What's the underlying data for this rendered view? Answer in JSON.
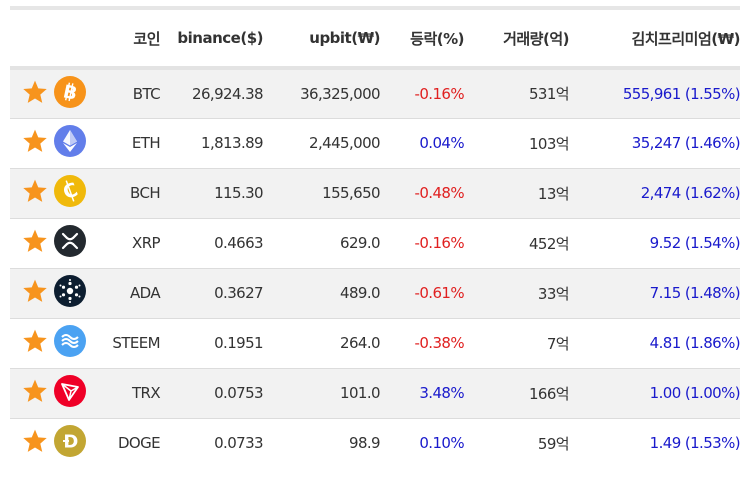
{
  "headers": {
    "coin": "코인",
    "binance": "binance($)",
    "upbit": "upbit(₩)",
    "change": "등락(%)",
    "volume": "거래량(억)",
    "premium": "김치프리미엄(₩)"
  },
  "colors": {
    "star": "#f7941d",
    "negative": "#e02020",
    "positive": "#1a1acc",
    "row_stripe": "#f2f2f2"
  },
  "rows": [
    {
      "symbol": "BTC",
      "binance": "26,924.38",
      "upbit": "36,325,000",
      "change": "-0.16%",
      "change_dir": "neg",
      "volume": "531억",
      "premium": "555,961 (1.55%)",
      "icon": "bitcoin-icon"
    },
    {
      "symbol": "ETH",
      "binance": "1,813.89",
      "upbit": "2,445,000",
      "change": "0.04%",
      "change_dir": "pos",
      "volume": "103억",
      "premium": "35,247 (1.46%)",
      "icon": "ethereum-icon"
    },
    {
      "symbol": "BCH",
      "binance": "115.30",
      "upbit": "155,650",
      "change": "-0.48%",
      "change_dir": "neg",
      "volume": "13억",
      "premium": "2,474 (1.62%)",
      "icon": "bitcoin-cash-icon"
    },
    {
      "symbol": "XRP",
      "binance": "0.4663",
      "upbit": "629.0",
      "change": "-0.16%",
      "change_dir": "neg",
      "volume": "452억",
      "premium": "9.52 (1.54%)",
      "icon": "xrp-icon"
    },
    {
      "symbol": "ADA",
      "binance": "0.3627",
      "upbit": "489.0",
      "change": "-0.61%",
      "change_dir": "neg",
      "volume": "33억",
      "premium": "7.15 (1.48%)",
      "icon": "cardano-icon"
    },
    {
      "symbol": "STEEM",
      "binance": "0.1951",
      "upbit": "264.0",
      "change": "-0.38%",
      "change_dir": "neg",
      "volume": "7억",
      "premium": "4.81 (1.86%)",
      "icon": "steem-icon"
    },
    {
      "symbol": "TRX",
      "binance": "0.0753",
      "upbit": "101.0",
      "change": "3.48%",
      "change_dir": "pos",
      "volume": "166억",
      "premium": "1.00 (1.00%)",
      "icon": "tron-icon"
    },
    {
      "symbol": "DOGE",
      "binance": "0.0733",
      "upbit": "98.9",
      "change": "0.10%",
      "change_dir": "pos",
      "volume": "59억",
      "premium": "1.49 (1.53%)",
      "icon": "dogecoin-icon"
    }
  ]
}
